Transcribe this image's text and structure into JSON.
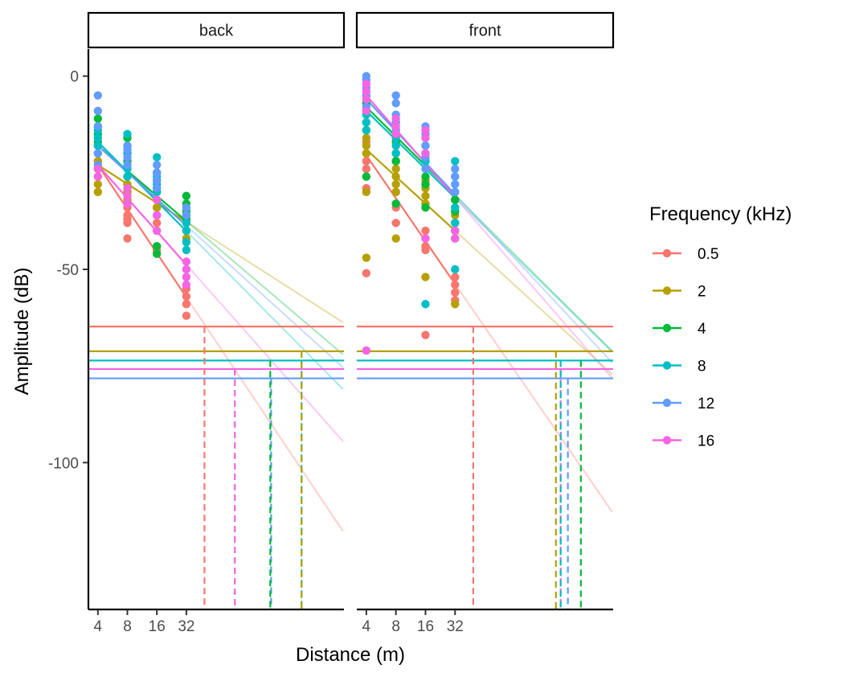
{
  "chart_data": {
    "type": "scatter",
    "xlabel": "Distance (m)",
    "ylabel": "Amplitude (dB)",
    "x_scale": "log2",
    "xlim": [
      3.2,
      1300
    ],
    "ylim": [
      -138,
      7
    ],
    "x_ticks": [
      {
        "value": 4,
        "label": "4"
      },
      {
        "value": 8,
        "label": "8"
      },
      {
        "value": 16,
        "label": "16"
      },
      {
        "value": 32,
        "label": "32"
      }
    ],
    "y_ticks": [
      {
        "value": 0,
        "label": "0"
      },
      {
        "value": -50,
        "label": "-50"
      },
      {
        "value": -100,
        "label": "-100"
      }
    ],
    "legend": {
      "title": "Frequency (kHz)",
      "placement": "right",
      "entries": [
        {
          "label": "0.5",
          "color": "#F8766D"
        },
        {
          "label": "2",
          "color": "#B79F00"
        },
        {
          "label": "4",
          "color": "#00BA38"
        },
        {
          "label": "8",
          "color": "#00BFC4"
        },
        {
          "label": "12",
          "color": "#619CFF"
        },
        {
          "label": "16",
          "color": "#F564E3"
        }
      ]
    },
    "series_colors": {
      "0.5": "#F8766D",
      "2": "#B79F00",
      "4": "#00BA38",
      "8": "#00BFC4",
      "12": "#619CFF",
      "16": "#F564E3"
    },
    "panels": [
      {
        "title": "back",
        "thresholds": {
          "0.5": -64.8,
          "2": -71.2,
          "4": -73.6,
          "8": -73.6,
          "12": -78.2,
          "16": -75.8
        },
        "fits": [
          {
            "series": "0.5",
            "a": -23.0,
            "b": -11.4
          },
          {
            "series": "2",
            "a": -23.0,
            "b": -4.9
          },
          {
            "series": "4",
            "a": -18.0,
            "b": -6.5
          },
          {
            "series": "8",
            "a": -17.0,
            "b": -7.7
          },
          {
            "series": "12",
            "a": -18.0,
            "b": -6.9
          },
          {
            "series": "16",
            "a": -23.0,
            "b": -8.6
          }
        ],
        "crossings": [
          {
            "series": "0.5",
            "x": 49
          },
          {
            "series": "16",
            "x": 100
          },
          {
            "series": "12",
            "x": 235
          },
          {
            "series": "4",
            "x": 230
          },
          {
            "series": "8",
            "x": 480
          },
          {
            "series": "2",
            "x": 480
          }
        ],
        "points": [
          {
            "series": "0.5",
            "x": 4,
            "y": [
              -18,
              -20,
              -22,
              -24
            ]
          },
          {
            "series": "0.5",
            "x": 8,
            "y": [
              -30,
              -34,
              -36,
              -37,
              -38,
              -42
            ]
          },
          {
            "series": "0.5",
            "x": 16,
            "y": [
              -34,
              -36,
              -38,
              -40,
              -45
            ]
          },
          {
            "series": "0.5",
            "x": 32,
            "y": [
              -55,
              -57,
              -59,
              -62
            ]
          },
          {
            "series": "2",
            "x": 4,
            "y": [
              -22,
              -24,
              -26,
              -28,
              -30
            ]
          },
          {
            "series": "2",
            "x": 8,
            "y": [
              -26,
              -28,
              -30,
              -32
            ]
          },
          {
            "series": "2",
            "x": 16,
            "y": [
              -30,
              -32,
              -34
            ]
          },
          {
            "series": "2",
            "x": 32,
            "y": [
              -36,
              -38,
              -40,
              -42
            ]
          },
          {
            "series": "4",
            "x": 4,
            "y": [
              -11,
              -13,
              -15,
              -17
            ]
          },
          {
            "series": "4",
            "x": 8,
            "y": [
              -16,
              -18,
              -20,
              -22
            ]
          },
          {
            "series": "4",
            "x": 16,
            "y": [
              -25,
              -27,
              -29,
              -44,
              -46
            ]
          },
          {
            "series": "4",
            "x": 32,
            "y": [
              -31,
              -33,
              -35,
              -37
            ]
          },
          {
            "series": "8",
            "x": 4,
            "y": [
              -14,
              -16,
              -18
            ]
          },
          {
            "series": "8",
            "x": 8,
            "y": [
              -15,
              -20,
              -24,
              -26
            ]
          },
          {
            "series": "8",
            "x": 16,
            "y": [
              -21,
              -26,
              -28,
              -30
            ]
          },
          {
            "series": "8",
            "x": 32,
            "y": [
              -36,
              -38,
              -40,
              -43,
              -45
            ]
          },
          {
            "series": "12",
            "x": 4,
            "y": [
              -5,
              -9,
              -13,
              -20,
              -23
            ]
          },
          {
            "series": "12",
            "x": 8,
            "y": [
              -18,
              -19,
              -21,
              -23
            ]
          },
          {
            "series": "12",
            "x": 16,
            "y": [
              -23,
              -25,
              -27,
              -29
            ]
          },
          {
            "series": "12",
            "x": 32,
            "y": [
              -34,
              -36
            ]
          },
          {
            "series": "16",
            "x": 4,
            "y": [
              -24,
              -26
            ]
          },
          {
            "series": "16",
            "x": 8,
            "y": [
              -29,
              -31,
              -33
            ]
          },
          {
            "series": "16",
            "x": 16,
            "y": [
              -32,
              -36,
              -40
            ]
          },
          {
            "series": "16",
            "x": 32,
            "y": [
              -48,
              -50,
              -52,
              -54
            ]
          }
        ]
      },
      {
        "title": "front",
        "thresholds": {
          "0.5": -64.8,
          "2": -71.2,
          "4": -73.6,
          "8": -73.6,
          "12": -78.2,
          "16": -75.8
        },
        "fits": [
          {
            "series": "0.5",
            "a": -20.5,
            "b": -11.1
          },
          {
            "series": "2",
            "a": -19.0,
            "b": -7.0
          },
          {
            "series": "4",
            "a": -8.0,
            "b": -7.6
          },
          {
            "series": "8",
            "a": -9.0,
            "b": -7.5
          },
          {
            "series": "12",
            "a": -6.0,
            "b": -8.2
          },
          {
            "series": "16",
            "a": -5.0,
            "b": -8.8
          }
        ],
        "crossings": [
          {
            "series": "0.5",
            "x": 49
          },
          {
            "series": "2",
            "x": 340
          },
          {
            "series": "16",
            "x": 380
          },
          {
            "series": "8",
            "x": 380
          },
          {
            "series": "12",
            "x": 450
          },
          {
            "series": "4",
            "x": 610
          }
        ],
        "points": [
          {
            "series": "0.5",
            "x": 4,
            "y": [
              -14,
              -17,
              -20,
              -22,
              -24,
              -26,
              -29,
              -51
            ]
          },
          {
            "series": "0.5",
            "x": 8,
            "y": [
              -22,
              -30,
              -34,
              -38
            ]
          },
          {
            "series": "0.5",
            "x": 16,
            "y": [
              -40,
              -42,
              -44,
              -45,
              -67
            ]
          },
          {
            "series": "0.5",
            "x": 32,
            "y": [
              -52,
              -54,
              -56,
              -58
            ]
          },
          {
            "series": "2",
            "x": 4,
            "y": [
              -14,
              -16,
              -18,
              -20,
              -30,
              -47
            ]
          },
          {
            "series": "2",
            "x": 8,
            "y": [
              -24,
              -26,
              -28,
              -30,
              -42
            ]
          },
          {
            "series": "2",
            "x": 16,
            "y": [
              -27,
              -29,
              -31,
              -33,
              -52
            ]
          },
          {
            "series": "2",
            "x": 32,
            "y": [
              -32,
              -34,
              -36,
              -59
            ]
          },
          {
            "series": "4",
            "x": 4,
            "y": [
              -5,
              -7,
              -9,
              -12,
              -26
            ]
          },
          {
            "series": "4",
            "x": 8,
            "y": [
              -15,
              -17,
              -20,
              -22,
              -33
            ]
          },
          {
            "series": "4",
            "x": 16,
            "y": [
              -22,
              -26,
              -28,
              -34
            ]
          },
          {
            "series": "4",
            "x": 32,
            "y": [
              -32,
              -35,
              -38,
              -40,
              -42
            ]
          },
          {
            "series": "8",
            "x": 4,
            "y": [
              -10,
              -12,
              -14
            ]
          },
          {
            "series": "8",
            "x": 8,
            "y": [
              -12,
              -16,
              -18,
              -20
            ]
          },
          {
            "series": "8",
            "x": 16,
            "y": [
              -18,
              -20,
              -22,
              -59
            ]
          },
          {
            "series": "8",
            "x": 32,
            "y": [
              -22,
              -26,
              -30,
              -34,
              -38,
              -50
            ]
          },
          {
            "series": "12",
            "x": 4,
            "y": [
              0,
              -1,
              -3,
              -5,
              -8
            ]
          },
          {
            "series": "12",
            "x": 8,
            "y": [
              -5,
              -7,
              -10,
              -12,
              -14
            ]
          },
          {
            "series": "12",
            "x": 16,
            "y": [
              -13,
              -15,
              -18,
              -21,
              -24
            ]
          },
          {
            "series": "12",
            "x": 32,
            "y": [
              -24,
              -26,
              -28,
              -30
            ]
          },
          {
            "series": "16",
            "x": 4,
            "y": [
              -2,
              -4,
              -6,
              -9,
              -71
            ]
          },
          {
            "series": "16",
            "x": 8,
            "y": [
              -11,
              -13,
              -15
            ]
          },
          {
            "series": "16",
            "x": 16,
            "y": [
              -14,
              -16,
              -20,
              -42
            ]
          },
          {
            "series": "16",
            "x": 32,
            "y": [
              -40,
              -42
            ]
          }
        ]
      }
    ]
  }
}
